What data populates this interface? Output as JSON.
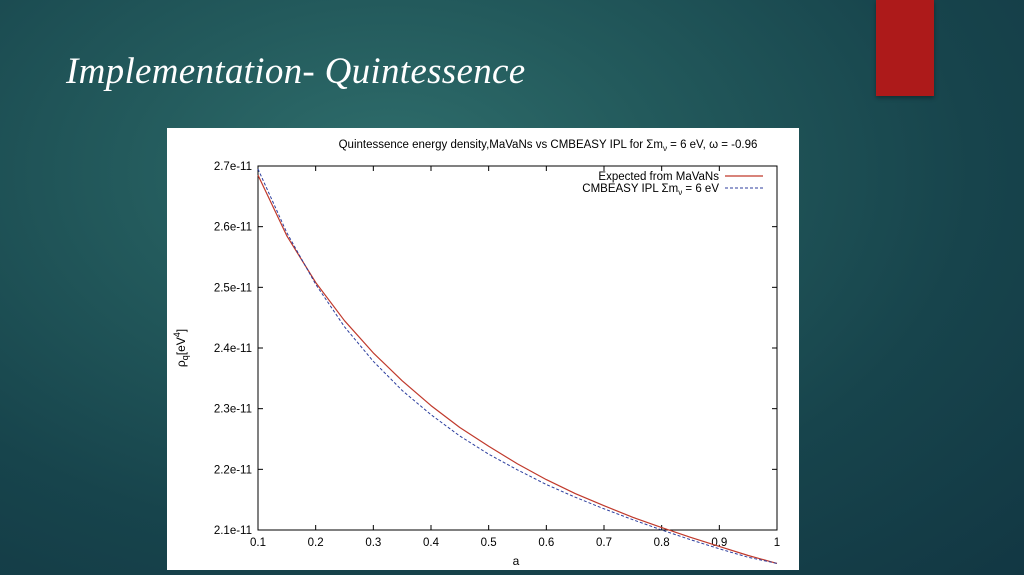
{
  "slide": {
    "title": "Implementation- Quintessence"
  },
  "chart_data": {
    "type": "line",
    "title_parts": {
      "t1": "Quintessence energy density,MaVaNs vs CMBEASY IPL for ",
      "t2": "Σm",
      "t3": "ν",
      "t4": " = 6 eV, ",
      "t5": "ω",
      "t6": " = -0.96"
    },
    "xlabel": "a",
    "ylabel_parts": {
      "rho": "ρ",
      "sub": "q",
      "unit": "[eV",
      "sup": "4",
      "close": "]"
    },
    "xlim": [
      0.1,
      1.0
    ],
    "ylim": [
      2.1e-11,
      2.7e-11
    ],
    "x_ticks": [
      "0.1",
      "0.2",
      "0.3",
      "0.4",
      "0.5",
      "0.6",
      "0.7",
      "0.8",
      "0.9",
      "1"
    ],
    "y_ticks": [
      "2.1e-11",
      "2.2e-11",
      "2.3e-11",
      "2.4e-11",
      "2.5e-11",
      "2.6e-11",
      "2.7e-11"
    ],
    "grid": false,
    "legend_position": "top-right",
    "legend": {
      "s1": "Expected from MaVaNs",
      "s2_a": "CMBEASY IPL  ",
      "s2_b": "Σm",
      "s2_c": "ν",
      "s2_d": " = 6 eV"
    },
    "series": [
      {
        "name": "Expected from MaVaNs",
        "color": "#c0392b",
        "style": "solid",
        "x": [
          0.1,
          0.15,
          0.2,
          0.25,
          0.3,
          0.35,
          0.4,
          0.45,
          0.5,
          0.55,
          0.6,
          0.65,
          0.7,
          0.75,
          0.8,
          0.85,
          0.9,
          0.95,
          1.0
        ],
        "y": [
          2.685e-11,
          2.585e-11,
          2.508e-11,
          2.445e-11,
          2.392e-11,
          2.346e-11,
          2.305e-11,
          2.269e-11,
          2.238e-11,
          2.209e-11,
          2.183e-11,
          2.16e-11,
          2.14e-11,
          2.121e-11,
          2.104e-11,
          2.088e-11,
          2.073e-11,
          2.058e-11,
          2.045e-11
        ]
      },
      {
        "name": "CMBEASY IPL Σmν = 6 eV",
        "color": "#2c3e9e",
        "style": "dashed",
        "x": [
          0.1,
          0.15,
          0.2,
          0.25,
          0.3,
          0.35,
          0.4,
          0.45,
          0.5,
          0.55,
          0.6,
          0.65,
          0.7,
          0.75,
          0.8,
          0.85,
          0.9,
          0.95,
          1.0
        ],
        "y": [
          2.695e-11,
          2.59e-11,
          2.505e-11,
          2.435e-11,
          2.378e-11,
          2.33e-11,
          2.29e-11,
          2.255e-11,
          2.225e-11,
          2.199e-11,
          2.175e-11,
          2.154e-11,
          2.135e-11,
          2.117e-11,
          2.1e-11,
          2.084e-11,
          2.069e-11,
          2.055e-11,
          2.045e-11
        ]
      }
    ]
  }
}
